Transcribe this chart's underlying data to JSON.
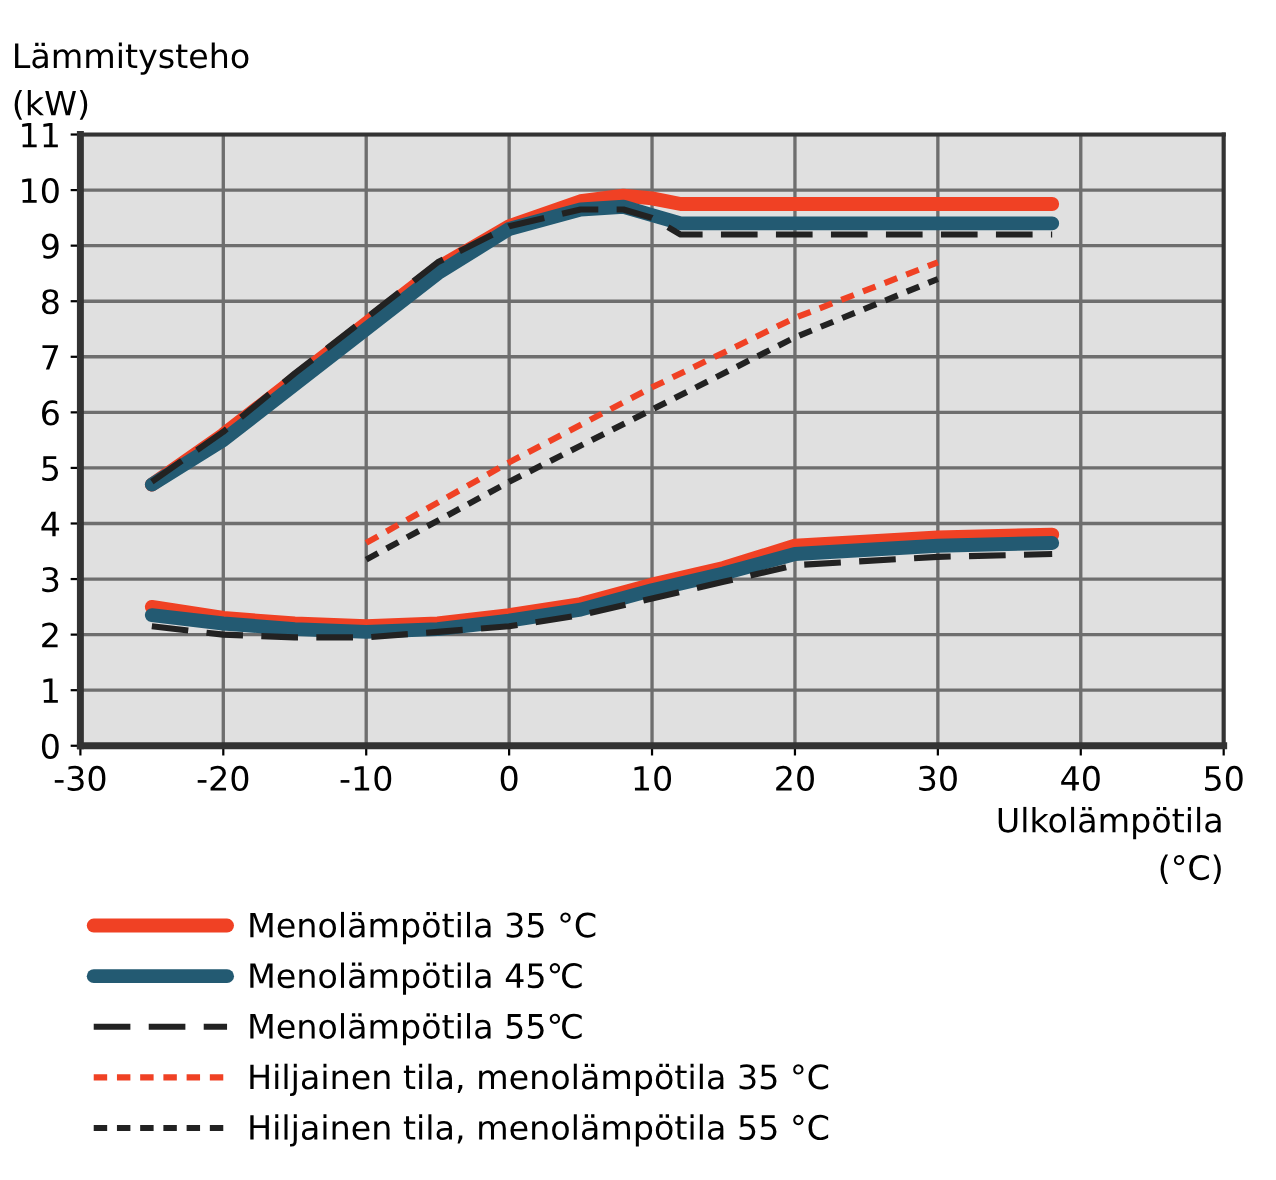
{
  "chart_data": {
    "type": "line",
    "xlabel": "Ulkolämpötila\n(°C)",
    "ylabel": "Lämmitysteho\n(kW)",
    "xlim": [
      -30,
      50
    ],
    "ylim": [
      0,
      11
    ],
    "xticks": [
      -30,
      -20,
      -10,
      0,
      10,
      20,
      30,
      40,
      50
    ],
    "yticks": [
      0,
      1,
      2,
      3,
      4,
      5,
      6,
      7,
      8,
      9,
      10,
      11
    ],
    "grid": true,
    "legend": "bottom",
    "series": [
      {
        "name": "Menolämpötila 35 °C",
        "color": "#f04124",
        "line_style": "solid",
        "x": [
          -25,
          -20,
          -15,
          -10,
          -5,
          0,
          5,
          8,
          10,
          12,
          20,
          30,
          38
        ],
        "values": [
          4.7,
          5.6,
          6.6,
          7.6,
          8.6,
          9.35,
          9.8,
          9.9,
          9.85,
          9.75,
          9.75,
          9.75,
          9.75
        ]
      },
      {
        "name": "Menolämpötila 45℃",
        "color": "#235a72",
        "line_style": "solid",
        "x": [
          -25,
          -20,
          -15,
          -10,
          -5,
          0,
          5,
          8,
          10,
          12,
          20,
          30,
          38
        ],
        "values": [
          4.7,
          5.5,
          6.5,
          7.5,
          8.5,
          9.3,
          9.65,
          9.7,
          9.55,
          9.4,
          9.4,
          9.4,
          9.4
        ]
      },
      {
        "name": "Menolämpötila 55℃",
        "color": "#222222",
        "line_style": "dashed",
        "x": [
          -25,
          -20,
          -15,
          -10,
          -5,
          0,
          5,
          8,
          10,
          12,
          20,
          30,
          38
        ],
        "values": [
          4.75,
          5.65,
          6.7,
          7.7,
          8.7,
          9.35,
          9.65,
          9.65,
          9.5,
          9.2,
          9.2,
          9.2,
          9.2
        ]
      },
      {
        "name": "Hiljainen tila, menolämpötila 35 °C",
        "color": "#f04124",
        "line_style": "dotted",
        "x": [
          -10,
          0,
          10,
          20,
          30
        ],
        "values": [
          3.65,
          5.1,
          6.45,
          7.7,
          8.7
        ]
      },
      {
        "name": "Hiljainen tila, menolämpötila 55 °C",
        "color": "#222222",
        "line_style": "dotted",
        "x": [
          -10,
          0,
          10,
          20,
          30
        ],
        "values": [
          3.35,
          4.75,
          6.05,
          7.35,
          8.4
        ]
      },
      {
        "color": "#f04124",
        "line_style": "solid",
        "x": [
          -25,
          -20,
          -15,
          -10,
          -5,
          0,
          5,
          10,
          15,
          20,
          30,
          38
        ],
        "values": [
          2.5,
          2.3,
          2.2,
          2.15,
          2.2,
          2.35,
          2.55,
          2.9,
          3.2,
          3.6,
          3.75,
          3.8
        ]
      },
      {
        "color": "#235a72",
        "line_style": "solid",
        "x": [
          -25,
          -20,
          -15,
          -10,
          -5,
          0,
          5,
          10,
          15,
          20,
          30,
          38
        ],
        "values": [
          2.35,
          2.2,
          2.1,
          2.05,
          2.1,
          2.25,
          2.45,
          2.8,
          3.1,
          3.45,
          3.6,
          3.65
        ]
      },
      {
        "color": "#222222",
        "line_style": "dashed",
        "x": [
          -25,
          -20,
          -15,
          -10,
          -5,
          0,
          5,
          10,
          15,
          20,
          30,
          38
        ],
        "values": [
          2.15,
          2.0,
          1.95,
          1.95,
          2.05,
          2.15,
          2.35,
          2.65,
          2.95,
          3.25,
          3.4,
          3.45
        ]
      }
    ]
  }
}
